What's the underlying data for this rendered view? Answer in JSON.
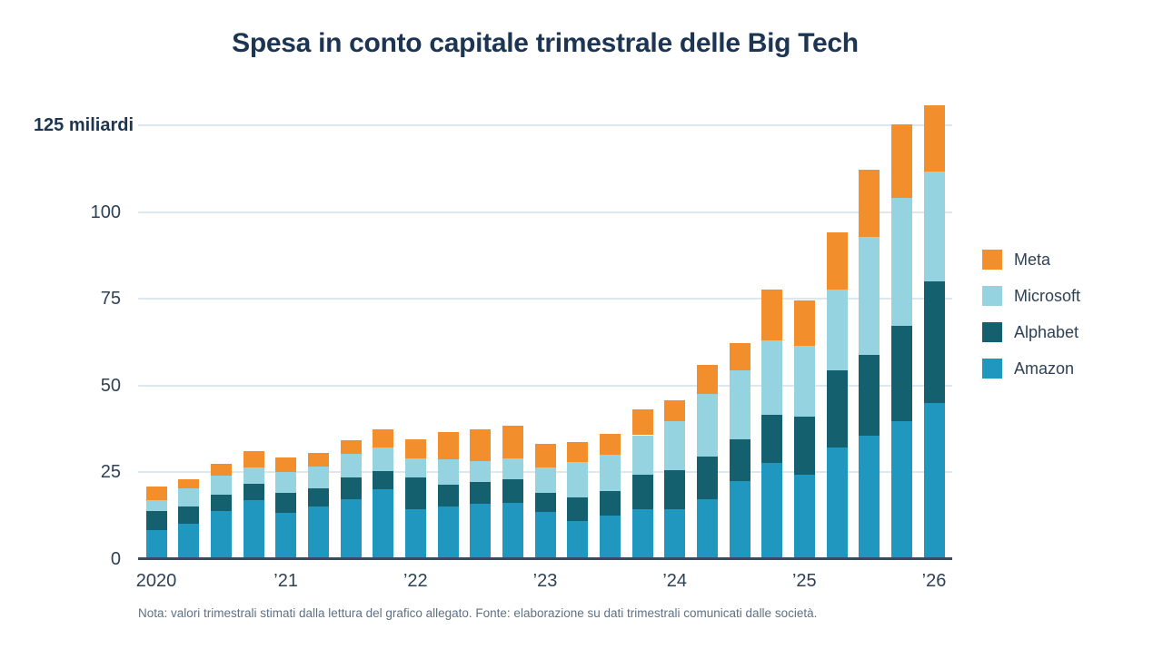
{
  "title": "Spesa in conto capitale trimestrale delle Big Tech",
  "note": "Nota: valori trimestrali stimati dalla lettura del grafico allegato. Fonte: elaborazione su dati trimestrali comunicati dalle società.",
  "colors": {
    "meta": "#f28e2c",
    "microsoft": "#96d3e0",
    "alphabet": "#15606f",
    "amazon": "#2097be",
    "title_text": "#1b3553",
    "axis_text": "#2e4156",
    "grid_line": "#dde7f0",
    "axis_line": "#3a4a60",
    "note_text": "#5f7183"
  },
  "legend": [
    {
      "label": "Meta",
      "color_key": "meta"
    },
    {
      "label": "Microsoft",
      "color_key": "microsoft"
    },
    {
      "label": "Alphabet",
      "color_key": "alphabet"
    },
    {
      "label": "Amazon",
      "color_key": "amazon"
    }
  ],
  "chart_data": {
    "type": "bar",
    "stacked": true,
    "title": "Spesa in conto capitale trimestrale delle Big Tech",
    "categories": [
      "2020Q1",
      "2020Q2",
      "2020Q3",
      "2020Q4",
      "2021Q1",
      "2021Q2",
      "2021Q3",
      "2021Q4",
      "2022Q1",
      "2022Q2",
      "2022Q3",
      "2022Q4",
      "2023Q1",
      "2023Q2",
      "2023Q3",
      "2023Q4",
      "2024Q1",
      "2024Q2",
      "2024Q3",
      "2024Q4",
      "2025Q1",
      "2025Q2",
      "2025Q3",
      "2025Q4",
      "2026Q1"
    ],
    "series": [
      {
        "name": "Amazon",
        "color_key": "amazon",
        "values": [
          8.4,
          10.3,
          13.9,
          17.0,
          13.3,
          15.3,
          17.2,
          20.2,
          14.3,
          15.3,
          16.0,
          16.3,
          13.7,
          11.0,
          12.5,
          14.4,
          14.4,
          17.3,
          22.5,
          27.7,
          24.2,
          32.2,
          35.6,
          39.7,
          44.9
        ]
      },
      {
        "name": "Alphabet",
        "color_key": "alphabet",
        "values": [
          5.4,
          5.0,
          4.8,
          4.8,
          5.7,
          5.2,
          6.4,
          5.3,
          9.3,
          6.1,
          6.3,
          6.8,
          5.5,
          6.7,
          7.1,
          9.8,
          11.3,
          12.3,
          11.9,
          14.0,
          16.9,
          22.1,
          23.2,
          27.4,
          35.1
        ]
      },
      {
        "name": "Microsoft",
        "color_key": "microsoft",
        "values": [
          3.3,
          5.0,
          5.3,
          4.6,
          6.0,
          6.2,
          6.7,
          6.6,
          5.5,
          7.4,
          6.0,
          5.9,
          7.3,
          10.3,
          10.5,
          11.5,
          14.1,
          17.9,
          19.9,
          21.3,
          20.4,
          23.3,
          34.0,
          36.9,
          31.6
        ]
      },
      {
        "name": "Meta",
        "color_key": "meta",
        "values": [
          3.7,
          2.8,
          3.5,
          4.8,
          4.2,
          3.8,
          4.0,
          5.2,
          5.4,
          7.8,
          9.1,
          9.4,
          6.7,
          5.7,
          6.1,
          7.4,
          5.9,
          8.5,
          8.0,
          14.6,
          13.0,
          16.5,
          19.3,
          21.3,
          19.2
        ]
      }
    ],
    "stack_order_bottom_to_top": [
      "Amazon",
      "Alphabet",
      "Microsoft",
      "Meta"
    ],
    "ylim": [
      0,
      131
    ],
    "grid": true,
    "legend_position": "right",
    "y_ticks": [
      {
        "value": 0,
        "label": "0",
        "bold": false
      },
      {
        "value": 25,
        "label": "25",
        "bold": false
      },
      {
        "value": 50,
        "label": "50",
        "bold": false
      },
      {
        "value": 75,
        "label": "75",
        "bold": false
      },
      {
        "value": 100,
        "label": "100",
        "bold": false
      },
      {
        "value": 125,
        "label": "125 miliardi",
        "bold": true
      }
    ],
    "x_ticks": [
      {
        "label": "2020",
        "bar_index": 0
      },
      {
        "label": "’21",
        "bar_index": 4
      },
      {
        "label": "’22",
        "bar_index": 8
      },
      {
        "label": "’23",
        "bar_index": 12
      },
      {
        "label": "’24",
        "bar_index": 16
      },
      {
        "label": "’25",
        "bar_index": 20
      },
      {
        "label": "’26",
        "bar_index": 24
      }
    ]
  }
}
